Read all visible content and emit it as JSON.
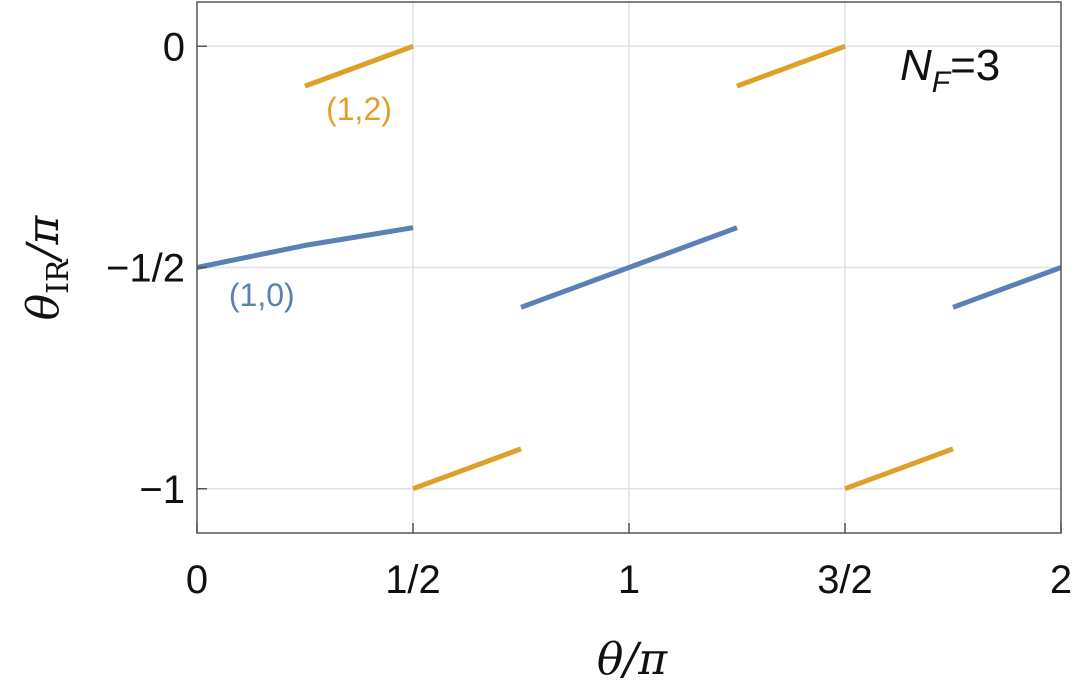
{
  "chart_data": {
    "type": "line",
    "title": "",
    "xlabel": "θ/π",
    "ylabel": {
      "main": "θ",
      "sub": "IR",
      "rest": "/π"
    },
    "xlim": [
      0,
      2
    ],
    "ylim": [
      -1.1,
      0.1
    ],
    "grid": true,
    "x_ticks": [
      {
        "value": 0,
        "label": "0"
      },
      {
        "value": 0.5,
        "label": "1/2"
      },
      {
        "value": 1,
        "label": "1"
      },
      {
        "value": 1.5,
        "label": "3/2"
      },
      {
        "value": 2,
        "label": "2"
      }
    ],
    "y_ticks": [
      {
        "value": 0,
        "label": "0"
      },
      {
        "value": -0.5,
        "label": "−1/2"
      },
      {
        "value": -1,
        "label": "−1"
      }
    ],
    "annotation": {
      "main": "N",
      "sub": "F",
      "rest": "=3"
    },
    "series": [
      {
        "name": "(1,0)",
        "color": "#5b80b6",
        "segments": [
          [
            [
              0,
              -0.5
            ],
            [
              0.25,
              -0.45
            ],
            [
              0.5,
              -0.41
            ]
          ],
          [
            [
              0.75,
              -0.59
            ],
            [
              1.0,
              -0.5
            ],
            [
              1.25,
              -0.41
            ]
          ],
          [
            [
              1.75,
              -0.59
            ],
            [
              2.0,
              -0.5
            ]
          ]
        ]
      },
      {
        "name": "(1,2)",
        "color": "#e0a028",
        "segments": [
          [
            [
              0.25,
              -0.09
            ],
            [
              0.5,
              0
            ]
          ],
          [
            [
              0.5,
              -1.0
            ],
            [
              0.75,
              -0.91
            ]
          ],
          [
            [
              1.25,
              -0.09
            ],
            [
              1.5,
              0
            ]
          ],
          [
            [
              1.5,
              -1.0
            ],
            [
              1.75,
              -0.91
            ]
          ]
        ]
      }
    ],
    "series_labels": [
      {
        "text": "(1,2)",
        "series": 1,
        "x": 0.375,
        "y": -0.14
      },
      {
        "text": "(1,0)",
        "series": 0,
        "x": 0.15,
        "y": -0.56
      }
    ]
  }
}
